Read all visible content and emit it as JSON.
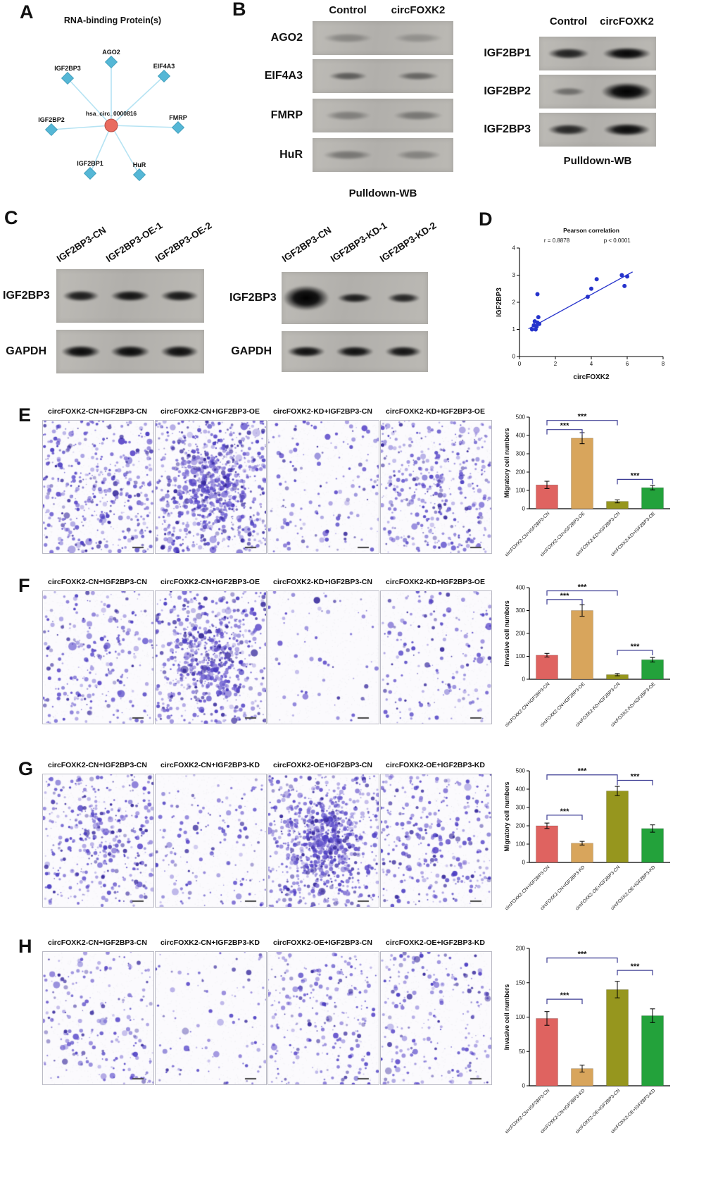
{
  "stain_colors": [
    "#4a3cc2",
    "#6a5cd0",
    "#35279b",
    "#8b7dd8",
    "#5946c8"
  ],
  "panels": {
    "A": {
      "label": "A",
      "title": "RNA-binding Protein(s)",
      "center_node": "hsa_circ_0000816",
      "nodes": [
        "AGO2",
        "EIF4A3",
        "FMRP",
        "HuR",
        "IGF2BP1",
        "IGF2BP2",
        "IGF2BP3"
      ],
      "colors": {
        "node": "#55b7d6",
        "center": "#e96c60",
        "edge": "#b5e3f3"
      }
    },
    "B": {
      "label": "B",
      "left_blot": {
        "col_headers": [
          "Control",
          "circFOXK2"
        ],
        "rows": [
          {
            "label": "AGO2",
            "bands": [
              {
                "i": 0.25,
                "w": 0.7,
                "h": 1
              },
              {
                "i": 0.2,
                "w": 0.7,
                "h": 1
              }
            ]
          },
          {
            "label": "EIF4A3",
            "bands": [
              {
                "i": 0.5,
                "w": 0.55,
                "h": 0.8
              },
              {
                "i": 0.45,
                "w": 0.6,
                "h": 0.8
              }
            ]
          },
          {
            "label": "FMRP",
            "bands": [
              {
                "i": 0.3,
                "w": 0.65,
                "h": 1
              },
              {
                "i": 0.35,
                "w": 0.7,
                "h": 1
              }
            ]
          },
          {
            "label": "HuR",
            "bands": [
              {
                "i": 0.35,
                "w": 0.7,
                "h": 1
              },
              {
                "i": 0.28,
                "w": 0.65,
                "h": 1
              }
            ]
          }
        ],
        "caption": "Pulldown-WB"
      },
      "right_blot": {
        "col_headers": [
          "Control",
          "circFOXK2"
        ],
        "rows": [
          {
            "label": "IGF2BP1",
            "bands": [
              {
                "i": 0.82,
                "w": 0.7,
                "h": 1.1
              },
              {
                "i": 0.97,
                "w": 0.82,
                "h": 1.35
              }
            ]
          },
          {
            "label": "IGF2BP2",
            "bands": [
              {
                "i": 0.4,
                "w": 0.6,
                "h": 0.9
              },
              {
                "i": 1,
                "w": 0.88,
                "h": 1.9
              }
            ]
          },
          {
            "label": "IGF2BP3",
            "bands": [
              {
                "i": 0.8,
                "w": 0.72,
                "h": 1.1
              },
              {
                "i": 0.95,
                "w": 0.8,
                "h": 1.3
              }
            ]
          }
        ],
        "caption": "Pulldown-WB"
      }
    },
    "C": {
      "label": "C",
      "left_blot": {
        "lane_headers": [
          "IGF2BP3-CN",
          "IGF2BP3-OE-1",
          "IGF2BP3-OE-2"
        ],
        "rows": [
          {
            "label": "IGF2BP3",
            "bands": [
              {
                "i": 0.85,
                "w": 0.75,
                "h": 1.1
              },
              {
                "i": 0.9,
                "w": 0.8,
                "h": 1.15
              },
              {
                "i": 0.88,
                "w": 0.78,
                "h": 1.1
              }
            ]
          },
          {
            "label": "GAPDH",
            "bands": [
              {
                "i": 0.95,
                "w": 0.8,
                "h": 1.3
              },
              {
                "i": 0.95,
                "w": 0.8,
                "h": 1.3
              },
              {
                "i": 0.93,
                "w": 0.78,
                "h": 1.25
              }
            ]
          }
        ]
      },
      "right_blot": {
        "lane_headers": [
          "IGF2BP3-CN",
          "IGF2BP3-KD-1",
          "IGF2BP3-KD-2"
        ],
        "rows": [
          {
            "label": "IGF2BP3",
            "bands": [
              {
                "i": 1,
                "w": 0.95,
                "h": 2.6
              },
              {
                "i": 0.85,
                "w": 0.72,
                "h": 1
              },
              {
                "i": 0.8,
                "w": 0.68,
                "h": 0.95
              }
            ]
          },
          {
            "label": "GAPDH",
            "bands": [
              {
                "i": 0.92,
                "w": 0.78,
                "h": 1.2
              },
              {
                "i": 0.92,
                "w": 0.78,
                "h": 1.2
              },
              {
                "i": 0.9,
                "w": 0.75,
                "h": 1.15
              }
            ]
          }
        ]
      }
    },
    "D": {
      "label": "D"
    },
    "E": {
      "label": "E",
      "image_titles": [
        "circFOXK2-CN+IGF2BP3-CN",
        "circFOXK2-CN+IGF2BP3-OE",
        "circFOXK2-KD+IGF2BP3-CN",
        "circFOXK2-KD+IGF2BP3-OE"
      ],
      "densities": [
        450,
        950,
        150,
        400
      ],
      "clusters": [
        0.15,
        0.4,
        0,
        0.1
      ]
    },
    "F": {
      "label": "F",
      "image_titles": [
        "circFOXK2-CN+IGF2BP3-CN",
        "circFOXK2-CN+IGF2BP3-OE",
        "circFOXK2-KD+IGF2BP3-CN",
        "circFOXK2-KD+IGF2BP3-OE"
      ],
      "densities": [
        260,
        700,
        60,
        170
      ],
      "clusters": [
        0.1,
        0.45,
        0,
        0
      ]
    },
    "G": {
      "label": "G",
      "image_titles": [
        "circFOXK2-CN+IGF2BP3-CN",
        "circFOXK2-CN+IGF2BP3-KD",
        "circFOXK2-OE+IGF2BP3-CN",
        "circFOXK2-OE+IGF2BP3-KD"
      ],
      "densities": [
        420,
        160,
        950,
        330
      ],
      "clusters": [
        0.15,
        0,
        0.5,
        0.1
      ]
    },
    "H": {
      "label": "H",
      "image_titles": [
        "circFOXK2-CN+IGF2BP3-CN",
        "circFOXK2-CN+IGF2BP3-KD",
        "circFOXK2-OE+IGF2BP3-CN",
        "circFOXK2-OE+IGF2BP3-KD"
      ],
      "densities": [
        210,
        90,
        260,
        220
      ],
      "clusters": [
        0,
        0,
        0.1,
        0
      ]
    }
  },
  "chart_data": [
    {
      "id": "D",
      "type": "scatter",
      "title": "Pearson correlation",
      "annotations": [
        "r = 0.8878",
        "p < 0.0001"
      ],
      "xlabel": "circFOXK2",
      "ylabel": "IGF2BP3",
      "xlim": [
        0,
        8
      ],
      "ylim": [
        0,
        4
      ],
      "xticks": [
        0,
        2,
        4,
        6,
        8
      ],
      "yticks": [
        0,
        1,
        2,
        3,
        4
      ],
      "points": [
        [
          0.7,
          1.0
        ],
        [
          0.8,
          1.15
        ],
        [
          0.85,
          1.3
        ],
        [
          0.95,
          1.1
        ],
        [
          1.0,
          1.25
        ],
        [
          1.05,
          1.45
        ],
        [
          1.1,
          1.2
        ],
        [
          0.9,
          1.0
        ],
        [
          1.0,
          2.3
        ],
        [
          3.8,
          2.2
        ],
        [
          4.0,
          2.5
        ],
        [
          4.3,
          2.85
        ],
        [
          5.7,
          3.0
        ],
        [
          5.85,
          2.6
        ],
        [
          6.0,
          2.95
        ]
      ],
      "trendline": [
        [
          0.5,
          1.02
        ],
        [
          6.3,
          3.12
        ]
      ],
      "point_color": "#2633cc"
    },
    {
      "id": "E",
      "type": "bar",
      "ylabel": "Migratory cell numbers",
      "categories": [
        "circFOXK2-CN+IGF2BP3-CN",
        "circFOXK2-CN+IGF2BP3-OE",
        "circFOXK2-KD+IGF2BP3-CN",
        "circFOXK2-KD+IGF2BP3-OE"
      ],
      "values": [
        130,
        385,
        40,
        115
      ],
      "errors": [
        20,
        30,
        8,
        12
      ],
      "colors": [
        "#df6360",
        "#d8a55c",
        "#96961e",
        "#23a23b"
      ],
      "ylim": [
        0,
        500
      ],
      "yticks": [
        0,
        100,
        200,
        300,
        400,
        500
      ],
      "significance": [
        {
          "from": 0,
          "to": 1,
          "y": 432,
          "label": "***"
        },
        {
          "from": 0,
          "to": 2,
          "y": 482,
          "label": "***"
        },
        {
          "from": 2,
          "to": 3,
          "y": 160,
          "label": "***"
        }
      ]
    },
    {
      "id": "F",
      "type": "bar",
      "ylabel": "Invasive cell numbers",
      "categories": [
        "circFOXK2-CN+IGF2BP3-CN",
        "circFOXK2-CN+IGF2BP3-OE",
        "circFOXK2-KD+IGF2BP3-CN",
        "circFOXK2-KD+IGF2BP3-OE"
      ],
      "values": [
        105,
        300,
        20,
        85
      ],
      "errors": [
        8,
        25,
        5,
        10
      ],
      "colors": [
        "#df6360",
        "#d8a55c",
        "#96961e",
        "#23a23b"
      ],
      "ylim": [
        0,
        400
      ],
      "yticks": [
        0,
        100,
        200,
        300,
        400
      ],
      "significance": [
        {
          "from": 0,
          "to": 1,
          "y": 348,
          "label": "***"
        },
        {
          "from": 0,
          "to": 2,
          "y": 386,
          "label": "***"
        },
        {
          "from": 2,
          "to": 3,
          "y": 126,
          "label": "***"
        }
      ]
    },
    {
      "id": "G",
      "type": "bar",
      "ylabel": "Migratory cell numbers",
      "categories": [
        "circFOXK2-CN+IGF2BP3-CN",
        "circFOXK2-CN+IGF2BP3-KD",
        "circFOXK2-OE+IGF2BP3-CN",
        "circFOXK2-OE+IGF2BP3-KD"
      ],
      "values": [
        200,
        105,
        390,
        185
      ],
      "errors": [
        15,
        10,
        25,
        20
      ],
      "colors": [
        "#df6360",
        "#d8a55c",
        "#96961e",
        "#23a23b"
      ],
      "ylim": [
        0,
        500
      ],
      "yticks": [
        0,
        100,
        200,
        300,
        400,
        500
      ],
      "significance": [
        {
          "from": 0,
          "to": 1,
          "y": 258,
          "label": "***"
        },
        {
          "from": 0,
          "to": 2,
          "y": 478,
          "label": "***"
        },
        {
          "from": 2,
          "to": 3,
          "y": 448,
          "label": "***"
        }
      ]
    },
    {
      "id": "H",
      "type": "bar",
      "ylabel": "Invasive cell numbers",
      "categories": [
        "circFOXK2-CN+IGF2BP3-CN",
        "circFOXK2-CN+IGF2BP3-KD",
        "circFOXK2-OE+IGF2BP3-CN",
        "circFOXK2-OE+IGF2BP3-KD"
      ],
      "values": [
        98,
        25,
        140,
        102
      ],
      "errors": [
        10,
        5,
        12,
        10
      ],
      "colors": [
        "#df6360",
        "#d8a55c",
        "#96961e",
        "#23a23b"
      ],
      "ylim": [
        0,
        200
      ],
      "yticks": [
        0,
        50,
        100,
        150,
        200
      ],
      "significance": [
        {
          "from": 0,
          "to": 1,
          "y": 126,
          "label": "***"
        },
        {
          "from": 0,
          "to": 2,
          "y": 186,
          "label": "***"
        },
        {
          "from": 2,
          "to": 3,
          "y": 168,
          "label": "***"
        }
      ]
    }
  ]
}
